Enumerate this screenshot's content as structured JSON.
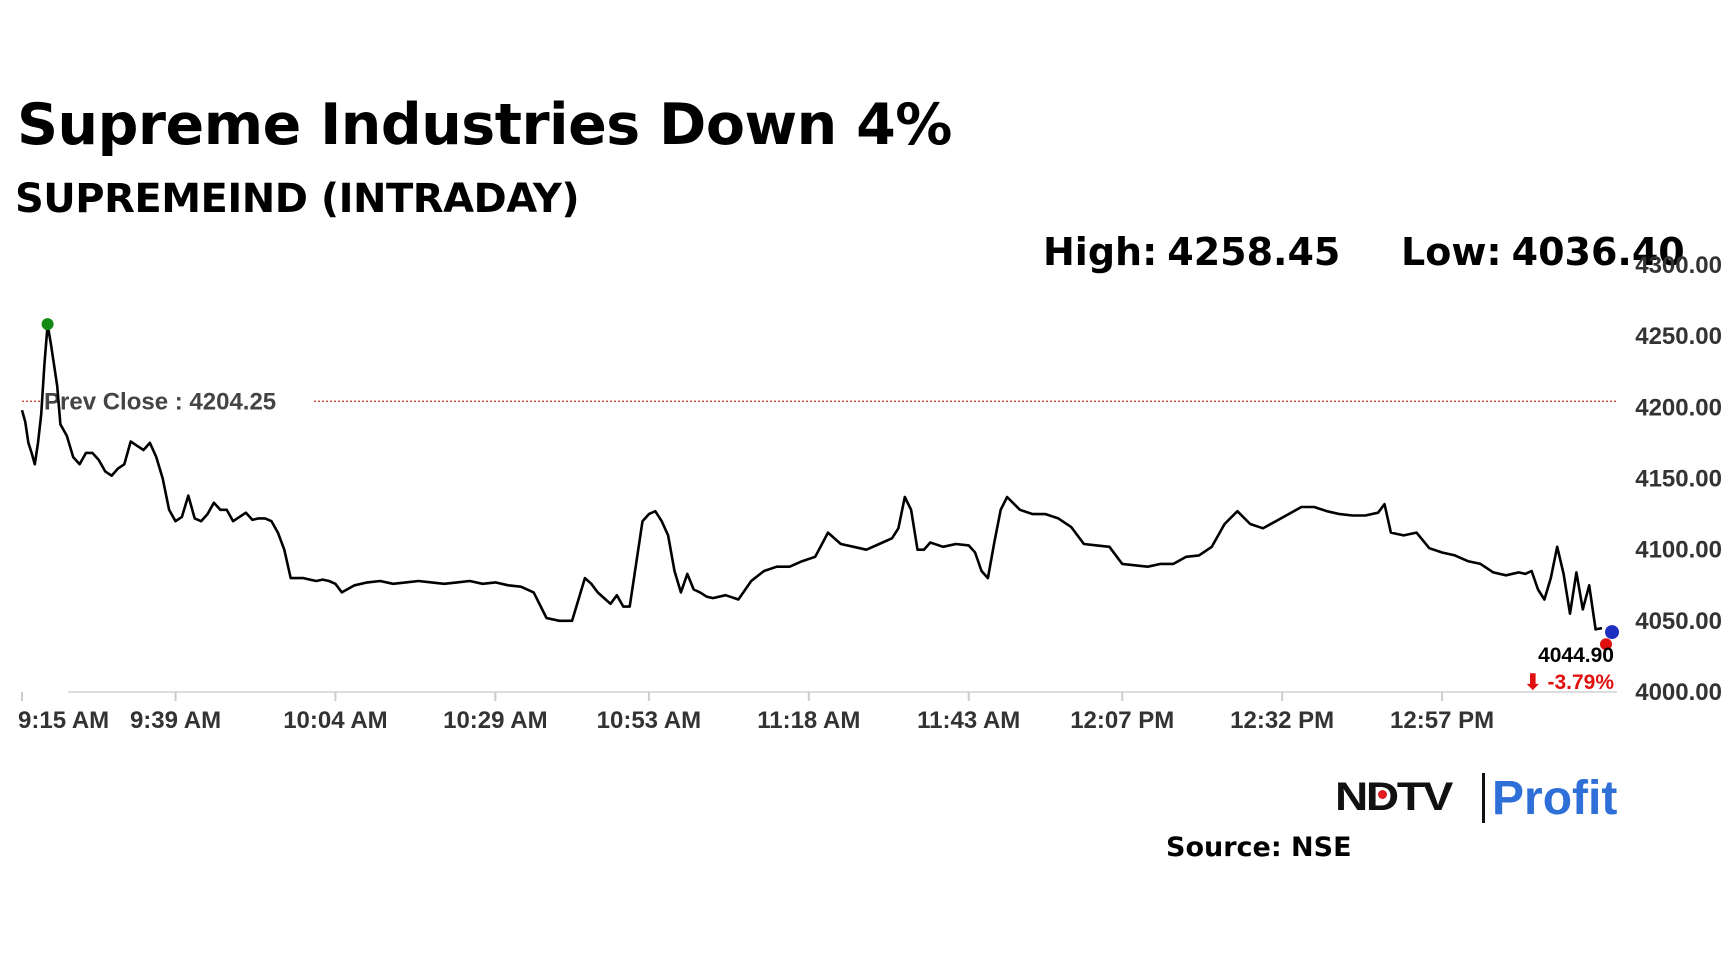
{
  "header": {
    "title": "Supreme Industries Down 4%",
    "subtitle": "SUPREMEIND (INTRADAY)",
    "high_label": "High:",
    "high_value": "4258.45",
    "low_label": "Low:",
    "low_value": "4036.40"
  },
  "footer": {
    "logo_ndtv": "NDTV",
    "logo_profit": "Profit",
    "source": "Source: NSE"
  },
  "colors": {
    "line": "#000000",
    "prev_close_line": "#c0392b",
    "high_marker": "#138a13",
    "low_marker": "#e01010",
    "last_marker": "#1f2fbf",
    "change_negative": "#e01010",
    "logo_profit_start": "#2f6fd8",
    "logo_profit_end": "#e23aa8"
  },
  "chart_data": {
    "type": "line",
    "title": "Supreme Industries Down 4%",
    "subtitle": "SUPREMEIND (INTRADAY)",
    "ylim": [
      4000,
      4300
    ],
    "y_ticks": [
      "4000.00",
      "4050.00",
      "4100.00",
      "4150.00",
      "4200.00",
      "4250.00",
      "4300.00"
    ],
    "x_ticks": [
      "9:15 AM",
      "9:39 AM",
      "10:04 AM",
      "10:29 AM",
      "10:53 AM",
      "11:18 AM",
      "11:43 AM",
      "12:07 PM",
      "12:32 PM",
      "12:57 PM"
    ],
    "x_tick_minutes": [
      0,
      24,
      49,
      74,
      98,
      123,
      148,
      172,
      197,
      222
    ],
    "x_range_minutes": [
      0,
      247
    ],
    "prev_close": {
      "label": "Prev Close : 4204.25",
      "value": 4204.25
    },
    "high": 4258.45,
    "low": 4036.4,
    "last": {
      "value": "4044.90",
      "change": "-3.79%"
    },
    "grid": false,
    "series": [
      {
        "x": [
          0,
          0.5,
          1,
          1.5,
          2,
          2.5,
          3,
          3.5,
          4,
          4.5,
          5,
          5.5,
          6,
          7,
          8,
          9,
          10,
          11,
          12,
          13,
          14,
          15,
          16,
          17,
          18,
          19,
          20,
          21,
          22,
          23,
          24,
          25,
          26,
          27,
          28,
          29,
          30,
          31,
          32,
          33,
          34,
          35,
          36,
          37,
          38,
          39,
          40,
          41,
          42,
          43,
          44,
          45,
          46,
          47,
          48,
          49,
          50,
          52,
          54,
          56,
          58,
          60,
          62,
          64,
          66,
          68,
          70,
          72,
          74,
          76,
          78,
          80,
          82,
          84,
          86,
          88,
          89,
          90,
          91,
          92,
          93,
          94,
          95,
          96,
          97,
          98,
          99,
          100,
          101,
          102,
          103,
          104,
          105,
          106,
          107,
          108,
          110,
          112,
          114,
          116,
          118,
          120,
          122,
          124,
          126,
          128,
          130,
          132,
          134,
          136,
          137,
          138,
          139,
          140,
          141,
          142,
          144,
          146,
          148,
          149,
          150,
          151,
          152,
          153,
          154,
          156,
          158,
          160,
          162,
          164,
          166,
          168,
          170,
          172,
          174,
          176,
          178,
          180,
          182,
          184,
          186,
          188,
          190,
          192,
          194,
          196,
          198,
          200,
          202,
          204,
          206,
          208,
          210,
          212,
          213,
          214,
          216,
          218,
          220,
          222,
          224,
          226,
          228,
          230,
          232,
          234,
          235,
          236,
          237,
          238,
          239,
          240,
          241,
          242,
          243,
          244,
          245,
          246,
          247
        ],
        "y": [
          4198,
          4190,
          4175,
          4168,
          4160,
          4175,
          4195,
          4230,
          4258,
          4245,
          4230,
          4215,
          4188,
          4180,
          4165,
          4160,
          4168,
          4168,
          4163,
          4155,
          4152,
          4157,
          4160,
          4176,
          4173,
          4170,
          4175,
          4165,
          4150,
          4128,
          4120,
          4123,
          4138,
          4122,
          4120,
          4125,
          4133,
          4128,
          4128,
          4120,
          4123,
          4126,
          4121,
          4122,
          4122,
          4120,
          4112,
          4100,
          4080,
          4080,
          4080,
          4079,
          4078,
          4079,
          4078,
          4076,
          4070,
          4075,
          4077,
          4078,
          4076,
          4077,
          4078,
          4077,
          4076,
          4077,
          4078,
          4076,
          4077,
          4075,
          4074,
          4070,
          4052,
          4050,
          4050,
          4080,
          4076,
          4070,
          4066,
          4062,
          4068,
          4060,
          4060,
          4090,
          4120,
          4125,
          4127,
          4120,
          4110,
          4085,
          4070,
          4083,
          4072,
          4070,
          4067,
          4066,
          4068,
          4065,
          4078,
          4085,
          4088,
          4088,
          4092,
          4095,
          4112,
          4104,
          4102,
          4100,
          4104,
          4108,
          4115,
          4137,
          4128,
          4100,
          4100,
          4105,
          4102,
          4104,
          4103,
          4098,
          4085,
          4080,
          4105,
          4128,
          4137,
          4128,
          4125,
          4125,
          4122,
          4116,
          4104,
          4103,
          4102,
          4090,
          4089,
          4088,
          4090,
          4090,
          4095,
          4096,
          4102,
          4118,
          4127,
          4118,
          4115,
          4120,
          4125,
          4130,
          4130,
          4127,
          4125,
          4124,
          4124,
          4126,
          4132,
          4112,
          4110,
          4112,
          4101,
          4098,
          4096,
          4092,
          4090,
          4084,
          4082,
          4084,
          4083,
          4085,
          4072,
          4065,
          4080,
          4102,
          4083,
          4055,
          4084,
          4058,
          4075,
          4044,
          4044.9
        ]
      }
    ]
  }
}
